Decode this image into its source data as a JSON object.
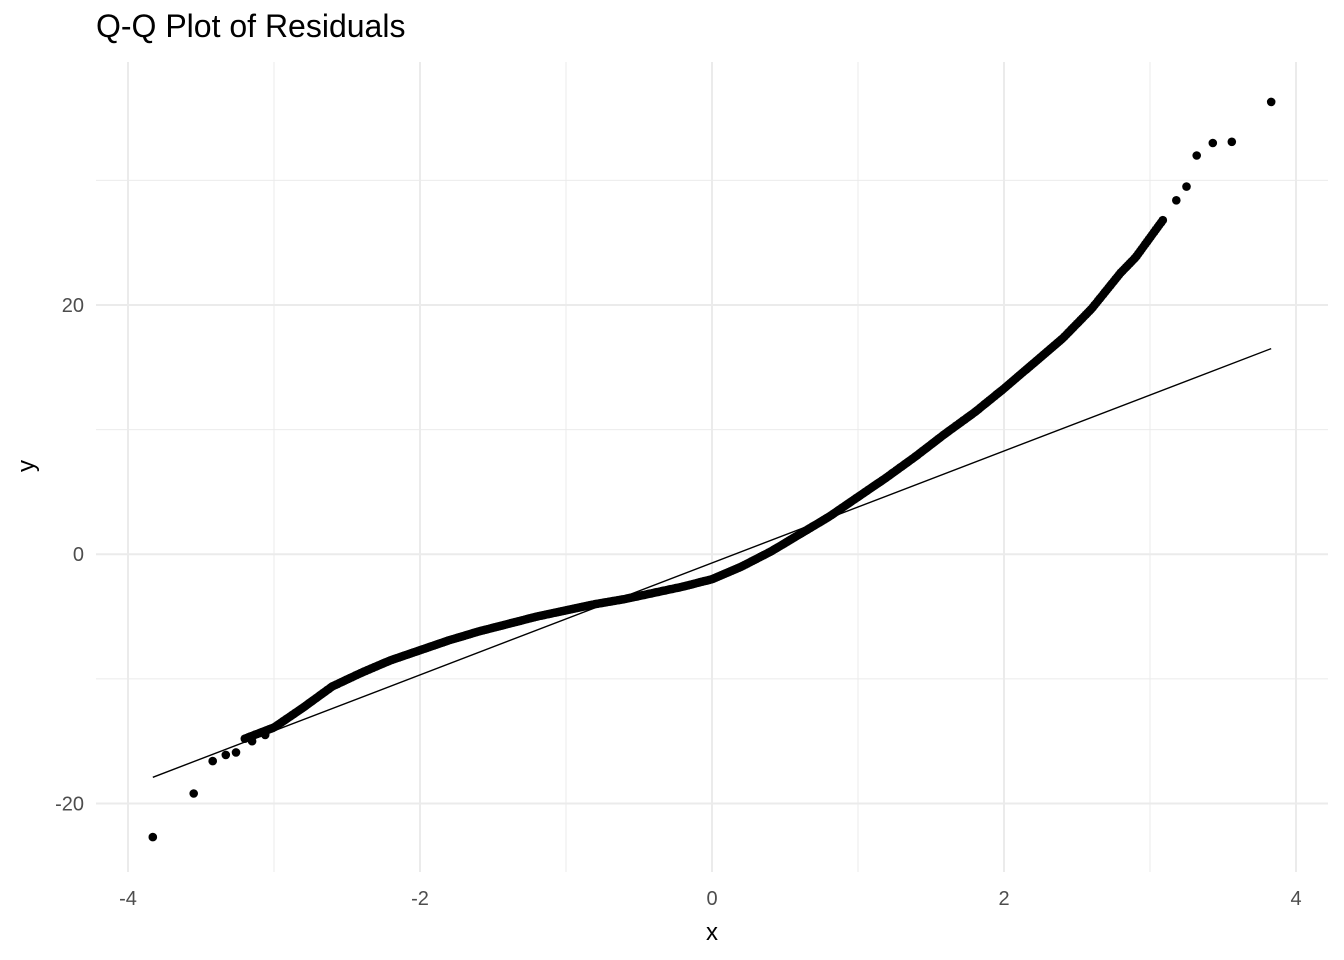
{
  "chart_data": {
    "type": "scatter",
    "title": "Q-Q Plot of Residuals",
    "xlabel": "x",
    "ylabel": "y",
    "xlim": [
      -4.0,
      4.0
    ],
    "ylim": [
      -25.5,
      39.5
    ],
    "x_ticks": [
      -4,
      -2,
      0,
      2,
      4
    ],
    "y_ticks": [
      -20,
      0,
      20
    ],
    "grid": true,
    "point_color": "#000000",
    "line_color": "#000000",
    "background": "#ffffff",
    "grid_color": "#ebebeb",
    "reference_line": {
      "x": [
        -3.83,
        3.83
      ],
      "y": [
        -17.9,
        16.5
      ]
    },
    "curve_knots": {
      "x": [
        -3.2,
        -3.0,
        -2.8,
        -2.6,
        -2.4,
        -2.2,
        -2.0,
        -1.8,
        -1.6,
        -1.4,
        -1.2,
        -1.0,
        -0.8,
        -0.6,
        -0.4,
        -0.2,
        0.0,
        0.2,
        0.4,
        0.6,
        0.8,
        1.0,
        1.2,
        1.4,
        1.6,
        1.8,
        2.0,
        2.2,
        2.4,
        2.6,
        2.8,
        2.9,
        3.0,
        3.1
      ],
      "y": [
        -14.8,
        -13.9,
        -12.3,
        -10.6,
        -9.5,
        -8.5,
        -7.7,
        -6.9,
        -6.2,
        -5.6,
        -5.0,
        -4.5,
        -4.0,
        -3.6,
        -3.1,
        -2.6,
        -2.0,
        -1.0,
        0.2,
        1.6,
        3.0,
        4.6,
        6.2,
        7.9,
        9.7,
        11.4,
        13.3,
        15.3,
        17.3,
        19.7,
        22.6,
        23.8,
        25.4,
        27.0
      ]
    },
    "outliers": {
      "x": [
        -3.83,
        -3.55,
        -3.42,
        -3.33,
        -3.26,
        -3.15,
        -3.06,
        3.18,
        3.25,
        3.32,
        3.43,
        3.56,
        3.83
      ],
      "y": [
        -22.7,
        -19.2,
        -16.6,
        -16.1,
        -15.9,
        -15.0,
        -14.5,
        28.4,
        29.5,
        32.0,
        33.0,
        33.1,
        36.3
      ]
    }
  }
}
